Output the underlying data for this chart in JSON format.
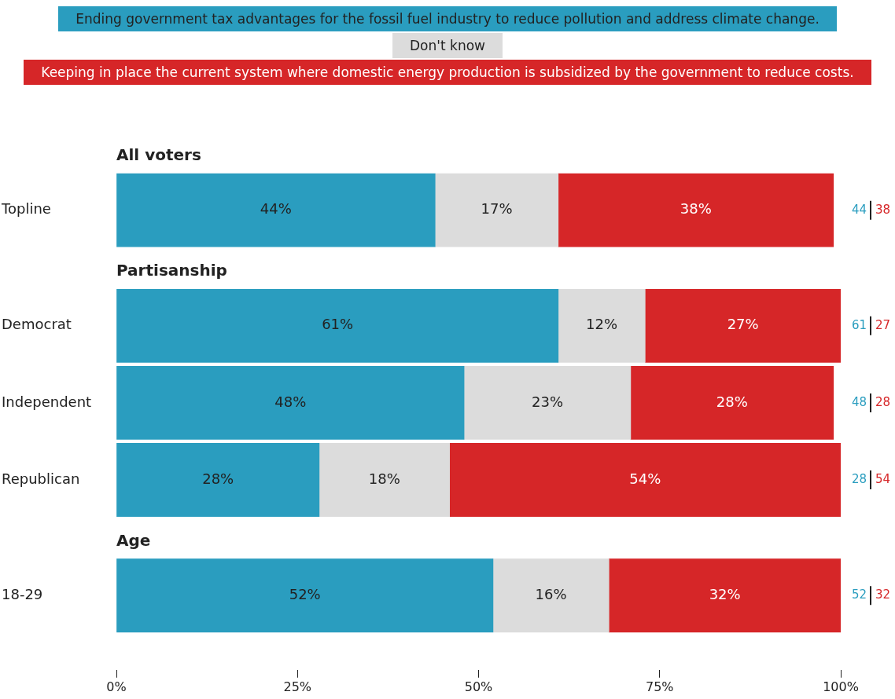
{
  "chart_data": {
    "type": "bar",
    "orientation": "horizontal",
    "stacked": true,
    "categories": [
      "Topline",
      "Democrat",
      "Independent",
      "Republican",
      "18-29"
    ],
    "series": [
      {
        "name": "Ending government tax advantages for the fossil fuel industry to reduce pollution and address climate change.",
        "color": "#2a9dbf",
        "values": [
          44,
          61,
          48,
          28,
          52
        ],
        "value_labels": [
          "44%",
          "61%",
          "48%",
          "28%",
          "52%"
        ]
      },
      {
        "name": "Don't know",
        "color": "#dcdcdc",
        "values": [
          17,
          12,
          23,
          18,
          16
        ],
        "value_labels": [
          "17%",
          "12%",
          "23%",
          "18%",
          "16%"
        ]
      },
      {
        "name": "Keeping in place the current system where domestic energy production is subsidized by the government to reduce costs.",
        "color": "#d62628",
        "values": [
          38,
          27,
          28,
          54,
          32
        ],
        "value_labels": [
          "38%",
          "27%",
          "28%",
          "54%",
          "32%"
        ]
      }
    ],
    "annotations": [
      "All voters",
      "Partisanship",
      "Age",
      "44",
      "38",
      "61",
      "27",
      "48",
      "28",
      "28",
      "54",
      "52",
      "32"
    ],
    "xlim": [
      0,
      100
    ],
    "xticks": [
      {
        "value": 0,
        "label": "0%"
      },
      {
        "value": 25,
        "label": "25%"
      },
      {
        "value": 50,
        "label": "50%"
      },
      {
        "value": 75,
        "label": "75%"
      },
      {
        "value": 100,
        "label": "100%"
      }
    ],
    "grid": false,
    "legend": "top"
  }
}
